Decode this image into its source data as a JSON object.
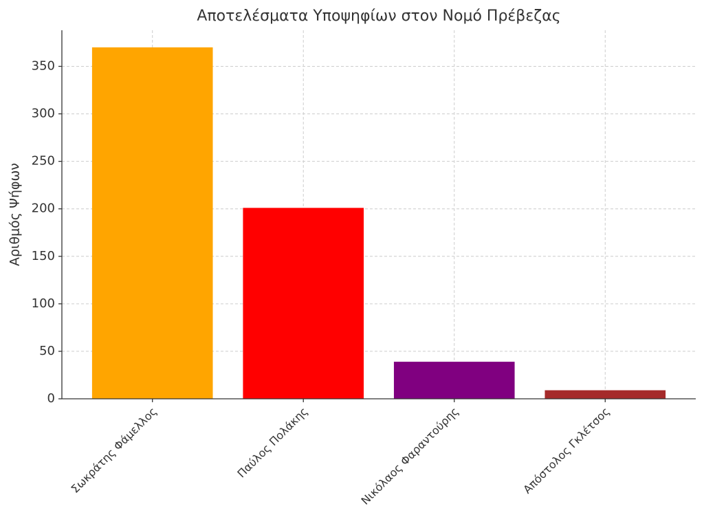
{
  "chart_data": {
    "type": "bar",
    "title": "Αποτελέσματα Υποψηφίων στον Νομό Πρέβεζας",
    "y_label": "Αριθμός Ψήφων",
    "categories": [
      "Σωκράτης Φάμελλος",
      "Παύλος Πολάκης",
      "Νικόλαος Φαραντούρης",
      "Απόστολος Γκλέτσος"
    ],
    "values": [
      370,
      201,
      39,
      9
    ],
    "colors": [
      "#ffa500",
      "#ff0000",
      "#800080",
      "#a52a2a"
    ],
    "ylim": [
      0,
      388
    ],
    "yticks": [
      0,
      50,
      100,
      150,
      200,
      250,
      300,
      350
    ],
    "grid": true
  }
}
